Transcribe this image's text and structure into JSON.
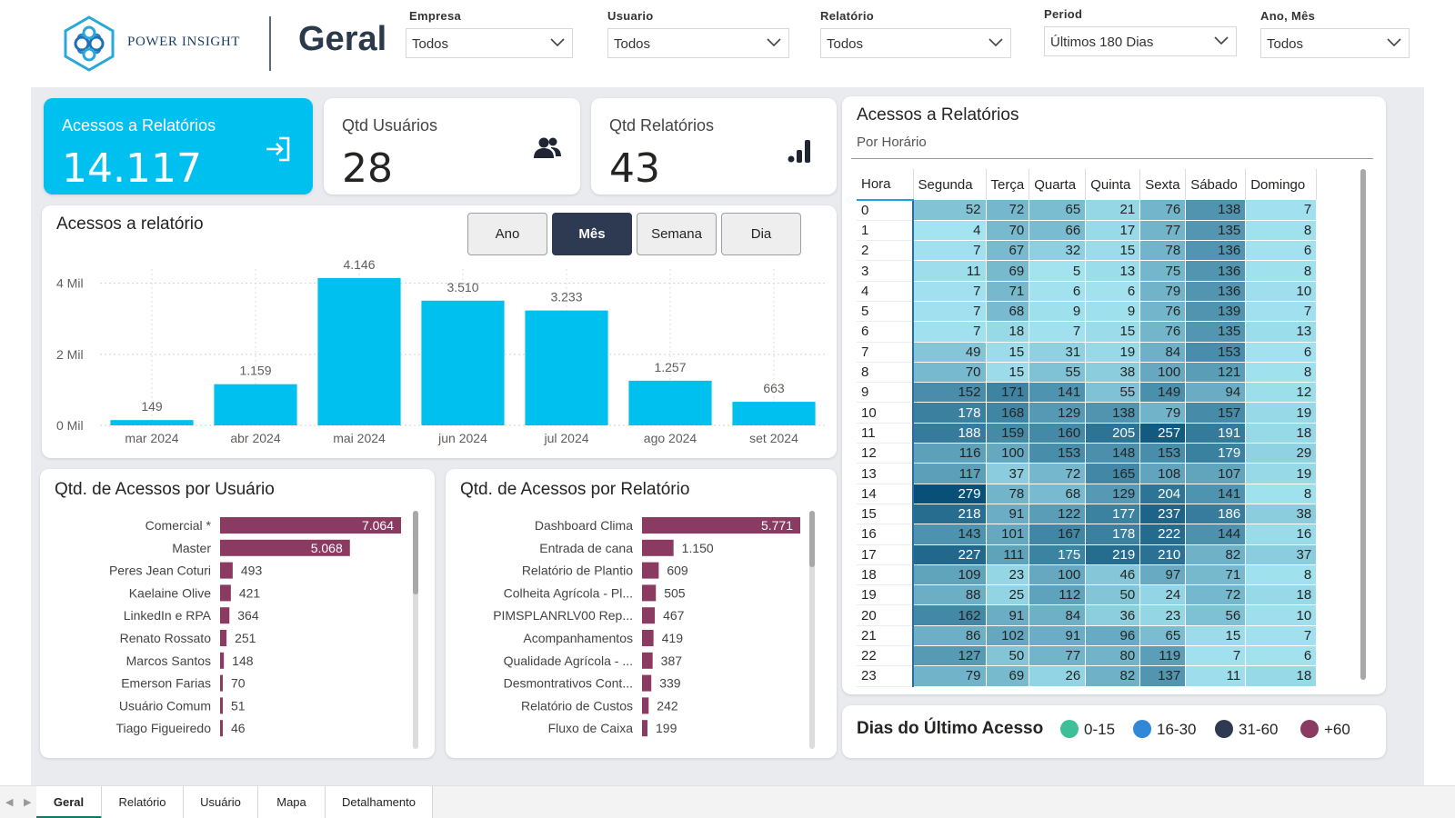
{
  "header": {
    "brand": "POWER INSIGHT",
    "page_title": "Geral",
    "filters": [
      {
        "label": "Empresa",
        "value": "Todos"
      },
      {
        "label": "Usuario",
        "value": "Todos"
      },
      {
        "label": "Relatório",
        "value": "Todos"
      },
      {
        "label": "Period",
        "value": "Últimos 180 Dias"
      },
      {
        "label": "Ano, Mês",
        "value": "Todos"
      }
    ]
  },
  "kpis": {
    "acessos": {
      "label": "Acessos a Relatórios",
      "value": "14.117",
      "icon": "login-icon"
    },
    "usuarios": {
      "label": "Qtd Usuários",
      "value": "28",
      "icon": "users-icon"
    },
    "relatorios": {
      "label": "Qtd Relatórios",
      "value": "43",
      "icon": "bar-chart-icon"
    }
  },
  "colors": {
    "accent": "#00c0f0",
    "bar": "#8b3a62",
    "dark": "#2d3a52",
    "legend_0_15": "#3dbf9a",
    "legend_16_30": "#3187d8",
    "legend_31_60": "#2d3a52",
    "legend_60": "#8b3a62"
  },
  "time_chart": {
    "title": "Acessos a relatório",
    "toggles": [
      {
        "label": "Ano",
        "active": false
      },
      {
        "label": "Mês",
        "active": true
      },
      {
        "label": "Semana",
        "active": false
      },
      {
        "label": "Dia",
        "active": false
      }
    ]
  },
  "user_chart": {
    "title": "Qtd. de Acessos por Usuário"
  },
  "report_chart": {
    "title": "Qtd. de Acessos por Relatório"
  },
  "matrix": {
    "title": "Acessos a Relatórios",
    "subtitle": "Por Horário",
    "columns": [
      "Hora",
      "Segunda",
      "Terça",
      "Quarta",
      "Quinta",
      "Sexta",
      "Sábado",
      "Domingo"
    ],
    "rows": [
      [
        "0",
        52,
        72,
        65,
        21,
        76,
        138,
        7
      ],
      [
        "1",
        4,
        70,
        66,
        17,
        77,
        135,
        8
      ],
      [
        "2",
        7,
        67,
        32,
        15,
        78,
        136,
        6
      ],
      [
        "3",
        11,
        69,
        5,
        13,
        75,
        136,
        8
      ],
      [
        "4",
        7,
        71,
        6,
        6,
        79,
        136,
        10
      ],
      [
        "5",
        7,
        68,
        9,
        9,
        76,
        139,
        7
      ],
      [
        "6",
        7,
        18,
        7,
        15,
        76,
        135,
        13
      ],
      [
        "7",
        49,
        15,
        31,
        19,
        84,
        153,
        6
      ],
      [
        "8",
        70,
        15,
        55,
        38,
        100,
        121,
        8
      ],
      [
        "9",
        152,
        171,
        141,
        55,
        149,
        94,
        12
      ],
      [
        "10",
        178,
        168,
        129,
        138,
        79,
        157,
        19
      ],
      [
        "11",
        188,
        159,
        160,
        205,
        257,
        191,
        18
      ],
      [
        "12",
        116,
        100,
        153,
        148,
        153,
        179,
        29
      ],
      [
        "13",
        117,
        37,
        72,
        165,
        108,
        107,
        19
      ],
      [
        "14",
        279,
        78,
        68,
        129,
        204,
        141,
        8
      ],
      [
        "15",
        218,
        91,
        122,
        177,
        237,
        186,
        38
      ],
      [
        "16",
        143,
        101,
        167,
        178,
        222,
        144,
        16
      ],
      [
        "17",
        227,
        111,
        175,
        219,
        210,
        82,
        37
      ],
      [
        "18",
        109,
        23,
        100,
        46,
        97,
        71,
        8
      ],
      [
        "19",
        88,
        25,
        112,
        50,
        24,
        72,
        18
      ],
      [
        "20",
        162,
        91,
        84,
        36,
        23,
        56,
        10
      ],
      [
        "21",
        86,
        102,
        91,
        96,
        65,
        15,
        7
      ],
      [
        "22",
        127,
        50,
        77,
        80,
        119,
        7,
        6
      ],
      [
        "23",
        79,
        69,
        26,
        82,
        137,
        11,
        18
      ]
    ]
  },
  "legend": {
    "title": "Dias do Último Acesso",
    "items": [
      {
        "label": "0-15",
        "color": "#3dbf9a"
      },
      {
        "label": "16-30",
        "color": "#3187d8"
      },
      {
        "label": "31-60",
        "color": "#2d3a52"
      },
      {
        "label": "+60",
        "color": "#8b3a62"
      }
    ]
  },
  "tabs": [
    {
      "label": "Geral",
      "active": true
    },
    {
      "label": "Relatório",
      "active": false
    },
    {
      "label": "Usuário",
      "active": false
    },
    {
      "label": "Mapa",
      "active": false
    },
    {
      "label": "Detalhamento",
      "active": false
    }
  ],
  "chart_data": [
    {
      "type": "bar",
      "title": "Acessos a relatório",
      "categories": [
        "mar 2024",
        "abr 2024",
        "mai 2024",
        "jun 2024",
        "jul 2024",
        "ago 2024",
        "set 2024"
      ],
      "values": [
        149,
        1159,
        4146,
        3510,
        3233,
        1257,
        663
      ],
      "value_labels": [
        "149",
        "1.159",
        "4.146",
        "3.510",
        "3.233",
        "1.257",
        "663"
      ],
      "y_ticks": [
        0,
        2000,
        4000
      ],
      "y_tick_labels": [
        "0 Mil",
        "2 Mil",
        "4 Mil"
      ],
      "ylim": [
        0,
        4400
      ],
      "grid": true
    },
    {
      "type": "bar",
      "orientation": "horizontal",
      "title": "Qtd. de Acessos por Usuário",
      "categories": [
        "Comercial *",
        "Master",
        "Peres Jean Coturi",
        "Kaelaine Olive",
        "LinkedIn e RPA",
        "Renato Rossato",
        "Marcos Santos",
        "Emerson Farias",
        "Usuário Comum",
        "Tiago Figueiredo"
      ],
      "values": [
        7064,
        5068,
        493,
        421,
        364,
        251,
        148,
        70,
        51,
        46
      ],
      "value_labels": [
        "7.064",
        "5.068",
        "493",
        "421",
        "364",
        "251",
        "148",
        "70",
        "51",
        "46"
      ],
      "xlim": [
        0,
        7064
      ]
    },
    {
      "type": "bar",
      "orientation": "horizontal",
      "title": "Qtd. de Acessos por Relatório",
      "categories": [
        "Dashboard Clima",
        "Entrada de cana",
        "Relatório de Plantio",
        "Colheita Agrícola - Pl...",
        "PIMSPLANRLV00 Rep...",
        "Acompanhamentos",
        "Qualidade Agrícola - ...",
        "Desmontrativos Cont...",
        "Relatório de Custos",
        "Fluxo de Caixa"
      ],
      "values": [
        5771,
        1150,
        609,
        505,
        467,
        419,
        387,
        339,
        242,
        199
      ],
      "value_labels": [
        "5.771",
        "1.150",
        "609",
        "505",
        "467",
        "419",
        "387",
        "339",
        "242",
        "199"
      ],
      "xlim": [
        0,
        5771
      ]
    }
  ]
}
